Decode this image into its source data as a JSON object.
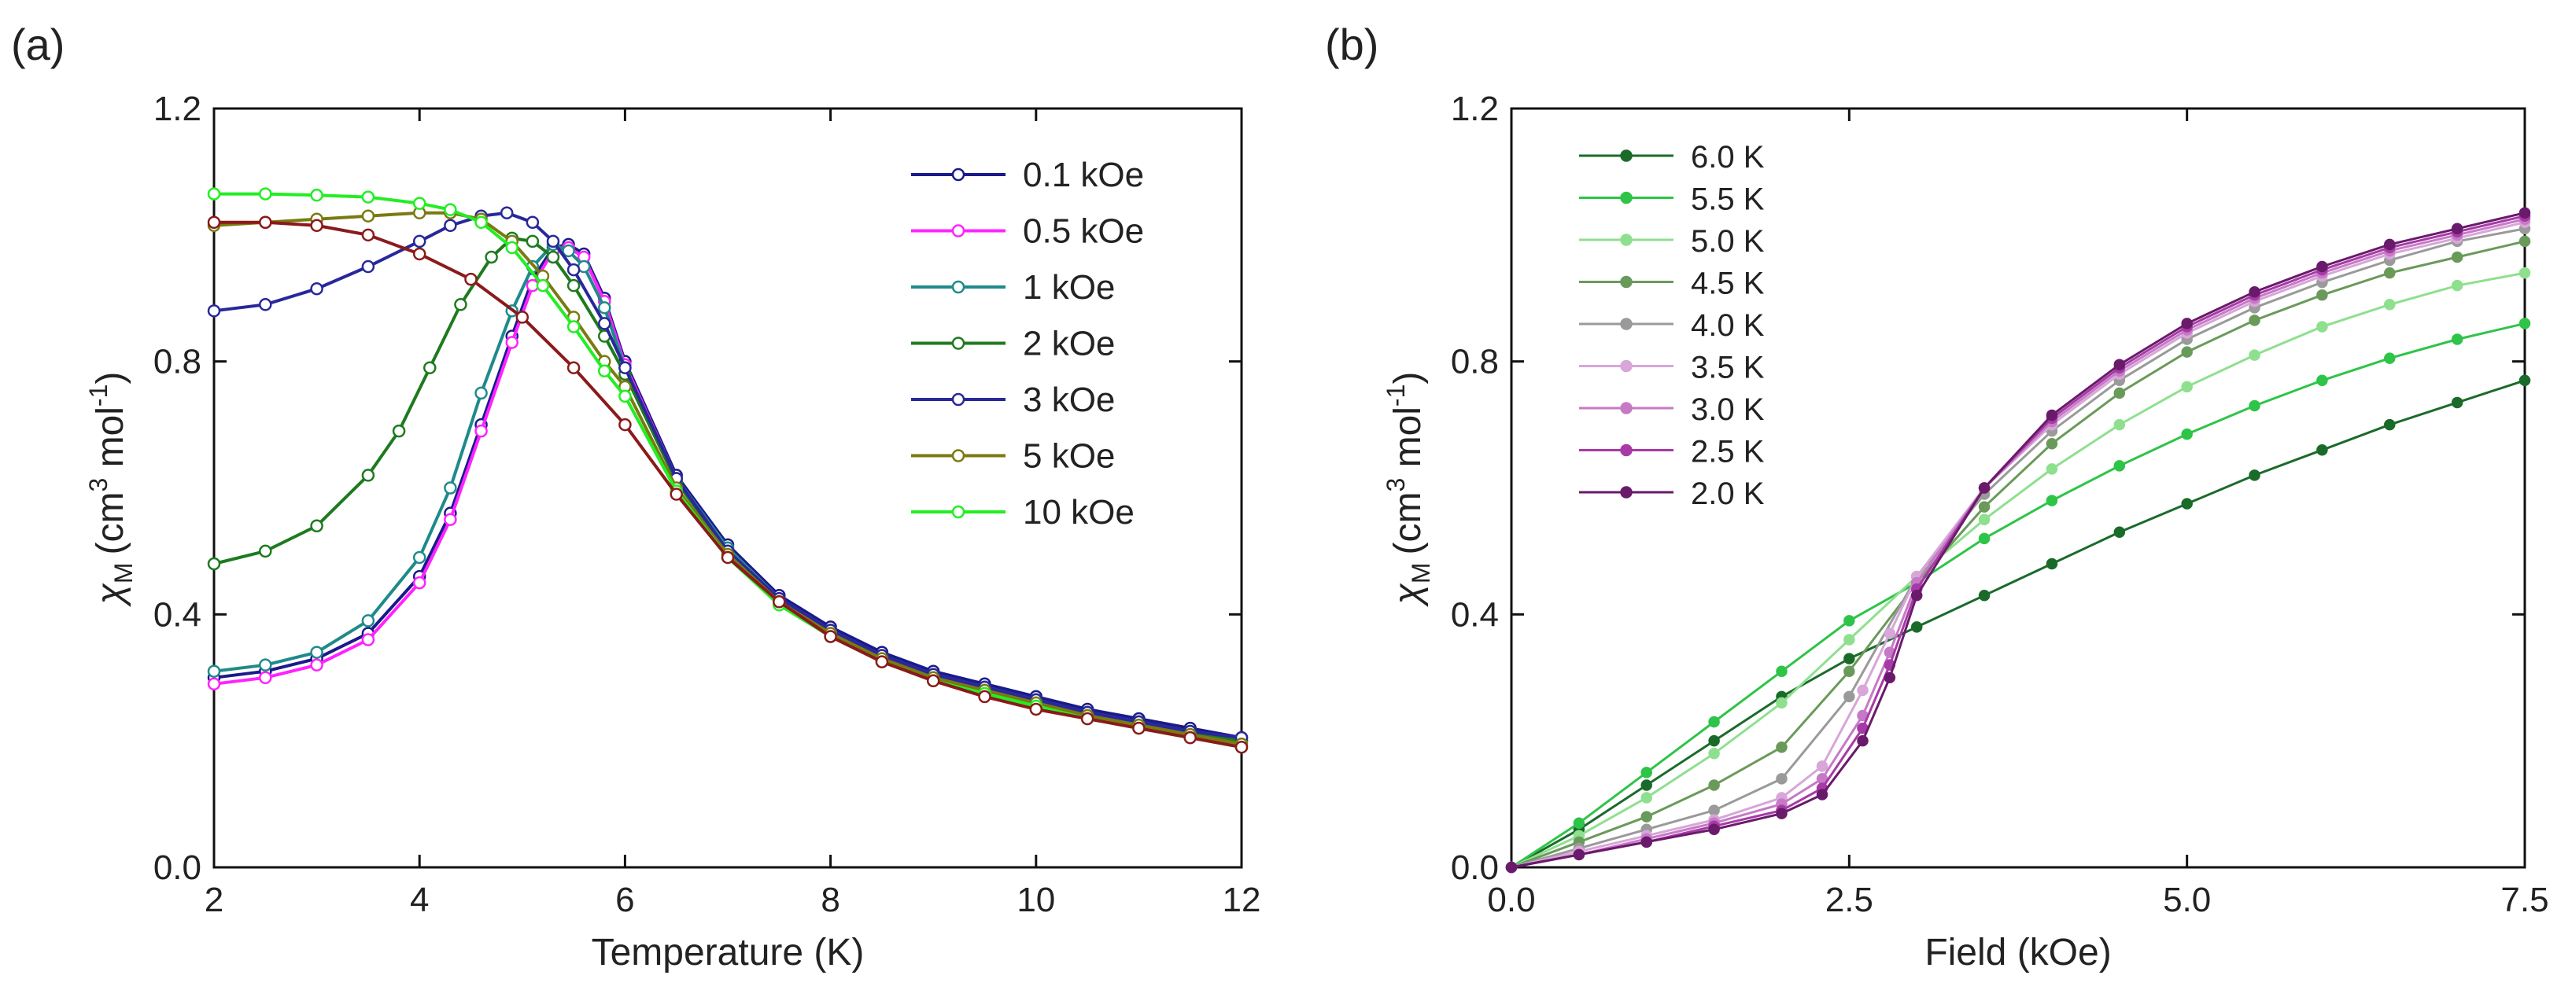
{
  "panels": {
    "a_label": "(a)",
    "b_label": "(b)"
  },
  "chart_data": [
    {
      "panel": "a",
      "type": "line",
      "title": "",
      "xlabel": "Temperature (K)",
      "ylabel_symbol": "χ",
      "ylabel_sub": "M",
      "ylabel_unit": "(cm",
      "ylabel_sup1": "3",
      "ylabel_mid": " mol",
      "ylabel_sup2": "-1",
      "ylabel_end": ")",
      "xlim": [
        2,
        12
      ],
      "ylim": [
        0,
        1.2
      ],
      "xticks": [
        2,
        4,
        6,
        8,
        10,
        12
      ],
      "xtick_labels": [
        "2",
        "4",
        "6",
        "8",
        "10",
        "12"
      ],
      "yticks": [
        0,
        0.4,
        0.8,
        1.2
      ],
      "ytick_labels": [
        "0.0",
        "0.4",
        "0.8",
        "1.2"
      ],
      "marker": "open-circle",
      "grid": false,
      "legend_position": "top-right",
      "series": [
        {
          "name": "0.1 kOe",
          "color": "#1a1a8c",
          "x": [
            2.0,
            2.5,
            3.0,
            3.5,
            4.0,
            4.3,
            4.6,
            4.9,
            5.1,
            5.3,
            5.45,
            5.6,
            5.8,
            6.0,
            6.5,
            7.0,
            7.5,
            8.0,
            8.5,
            9.0,
            9.5,
            10.0,
            10.5,
            11.0,
            11.5,
            12.0
          ],
          "y": [
            0.3,
            0.31,
            0.33,
            0.37,
            0.46,
            0.56,
            0.7,
            0.84,
            0.93,
            0.98,
            0.985,
            0.97,
            0.9,
            0.8,
            0.62,
            0.51,
            0.43,
            0.38,
            0.34,
            0.31,
            0.29,
            0.27,
            0.25,
            0.235,
            0.22,
            0.205
          ]
        },
        {
          "name": "0.5 kOe",
          "color": "#ff22ff",
          "x": [
            2.0,
            2.5,
            3.0,
            3.5,
            4.0,
            4.3,
            4.6,
            4.9,
            5.1,
            5.3,
            5.45,
            5.6,
            5.8,
            6.0,
            6.5,
            7.0,
            7.5,
            8.0,
            8.5,
            9.0,
            9.5,
            10.0,
            10.5,
            11.0,
            11.5,
            12.0
          ],
          "y": [
            0.29,
            0.3,
            0.32,
            0.36,
            0.45,
            0.55,
            0.69,
            0.83,
            0.92,
            0.975,
            0.98,
            0.965,
            0.895,
            0.795,
            0.615,
            0.505,
            0.425,
            0.375,
            0.335,
            0.305,
            0.285,
            0.265,
            0.245,
            0.23,
            0.215,
            0.2
          ]
        },
        {
          "name": "1 kOe",
          "color": "#1f8a8a",
          "x": [
            2.0,
            2.5,
            3.0,
            3.5,
            4.0,
            4.3,
            4.6,
            4.9,
            5.1,
            5.3,
            5.45,
            5.6,
            5.8,
            6.0,
            6.5,
            7.0,
            7.5,
            8.0,
            8.5,
            9.0,
            9.5,
            10.0,
            10.5,
            11.0,
            11.5,
            12.0
          ],
          "y": [
            0.31,
            0.32,
            0.34,
            0.39,
            0.49,
            0.6,
            0.75,
            0.88,
            0.95,
            0.985,
            0.975,
            0.95,
            0.885,
            0.79,
            0.615,
            0.505,
            0.425,
            0.375,
            0.335,
            0.305,
            0.285,
            0.265,
            0.245,
            0.23,
            0.215,
            0.2
          ]
        },
        {
          "name": "2 kOe",
          "color": "#1e7a1e",
          "x": [
            2.0,
            2.5,
            3.0,
            3.5,
            3.8,
            4.1,
            4.4,
            4.7,
            4.9,
            5.1,
            5.3,
            5.5,
            5.8,
            6.0,
            6.5,
            7.0,
            7.5,
            8.0,
            8.5,
            9.0,
            9.5,
            10.0,
            10.5,
            11.0,
            11.5,
            12.0
          ],
          "y": [
            0.48,
            0.5,
            0.54,
            0.62,
            0.69,
            0.79,
            0.89,
            0.965,
            0.995,
            0.99,
            0.965,
            0.92,
            0.84,
            0.78,
            0.61,
            0.5,
            0.42,
            0.37,
            0.33,
            0.3,
            0.28,
            0.26,
            0.245,
            0.23,
            0.215,
            0.2
          ]
        },
        {
          "name": "3 kOe",
          "color": "#28289a",
          "x": [
            2.0,
            2.5,
            3.0,
            3.5,
            4.0,
            4.3,
            4.6,
            4.85,
            5.1,
            5.3,
            5.5,
            5.8,
            6.0,
            6.5,
            7.0,
            7.5,
            8.0,
            8.5,
            9.0,
            9.5,
            10.0,
            10.5,
            11.0,
            11.5,
            12.0
          ],
          "y": [
            0.88,
            0.89,
            0.915,
            0.95,
            0.99,
            1.015,
            1.03,
            1.035,
            1.02,
            0.99,
            0.945,
            0.86,
            0.79,
            0.615,
            0.5,
            0.425,
            0.375,
            0.335,
            0.305,
            0.285,
            0.265,
            0.245,
            0.23,
            0.215,
            0.205
          ]
        },
        {
          "name": "5 kOe",
          "color": "#7a7a10",
          "x": [
            2.0,
            2.5,
            3.0,
            3.5,
            4.0,
            4.3,
            4.6,
            4.9,
            5.2,
            5.5,
            5.8,
            6.0,
            6.5,
            7.0,
            7.5,
            8.0,
            8.5,
            9.0,
            9.5,
            10.0,
            10.5,
            11.0,
            11.5,
            12.0
          ],
          "y": [
            1.015,
            1.02,
            1.025,
            1.03,
            1.035,
            1.035,
            1.025,
            0.99,
            0.935,
            0.87,
            0.8,
            0.76,
            0.6,
            0.495,
            0.42,
            0.37,
            0.33,
            0.3,
            0.28,
            0.26,
            0.24,
            0.225,
            0.21,
            0.195
          ]
        },
        {
          "name": "10 kOe",
          "color": "#22ee22",
          "x": [
            2.0,
            2.5,
            3.0,
            3.5,
            4.0,
            4.3,
            4.6,
            4.9,
            5.2,
            5.5,
            5.8,
            6.0,
            6.5,
            7.0,
            7.5,
            8.0,
            8.5,
            9.0,
            9.5,
            10.0,
            10.5,
            11.0,
            11.5,
            12.0
          ],
          "y": [
            1.065,
            1.065,
            1.063,
            1.06,
            1.05,
            1.04,
            1.02,
            0.98,
            0.92,
            0.855,
            0.785,
            0.745,
            0.595,
            0.49,
            0.415,
            0.365,
            0.325,
            0.295,
            0.275,
            0.255,
            0.235,
            0.22,
            0.205,
            0.19
          ]
        },
        {
          "name": "",
          "color": "#8b1a1a",
          "x": [
            2.0,
            2.5,
            3.0,
            3.5,
            4.0,
            4.5,
            5.0,
            5.5,
            6.0,
            6.5,
            7.0,
            7.5,
            8.0,
            8.5,
            9.0,
            9.5,
            10.0,
            10.5,
            11.0,
            11.5,
            12.0
          ],
          "y": [
            1.02,
            1.02,
            1.015,
            1.0,
            0.97,
            0.93,
            0.87,
            0.79,
            0.7,
            0.59,
            0.49,
            0.42,
            0.365,
            0.325,
            0.295,
            0.27,
            0.25,
            0.235,
            0.22,
            0.205,
            0.19
          ]
        }
      ]
    },
    {
      "panel": "b",
      "type": "line",
      "title": "",
      "xlabel": "Field (kOe)",
      "ylabel_symbol": "χ",
      "ylabel_sub": "M",
      "ylabel_unit": "(cm",
      "ylabel_sup1": "3",
      "ylabel_mid": " mol",
      "ylabel_sup2": "-1",
      "ylabel_end": ")",
      "xlim": [
        0,
        7.5
      ],
      "ylim": [
        0,
        1.2
      ],
      "xticks": [
        0,
        2.5,
        5.0,
        7.5
      ],
      "xtick_labels": [
        "0.0",
        "2.5",
        "5.0",
        "7.5"
      ],
      "yticks": [
        0,
        0.4,
        0.8,
        1.2
      ],
      "ytick_labels": [
        "0.0",
        "0.4",
        "0.8",
        "1.2"
      ],
      "marker": "filled-circle",
      "grid": false,
      "legend_position": "top-left",
      "series": [
        {
          "name": "6.0 K",
          "color": "#1a6b2a",
          "x": [
            0,
            0.5,
            1.0,
            1.5,
            2.0,
            2.5,
            3.0,
            3.5,
            4.0,
            4.5,
            5.0,
            5.5,
            6.0,
            6.5,
            7.0,
            7.5
          ],
          "y": [
            0,
            0.06,
            0.13,
            0.2,
            0.27,
            0.33,
            0.38,
            0.43,
            0.48,
            0.53,
            0.575,
            0.62,
            0.66,
            0.7,
            0.735,
            0.77
          ]
        },
        {
          "name": "5.5 K",
          "color": "#2ec448",
          "x": [
            0,
            0.5,
            1.0,
            1.5,
            2.0,
            2.5,
            3.0,
            3.5,
            4.0,
            4.5,
            5.0,
            5.5,
            6.0,
            6.5,
            7.0,
            7.5
          ],
          "y": [
            0,
            0.07,
            0.15,
            0.23,
            0.31,
            0.39,
            0.45,
            0.52,
            0.58,
            0.635,
            0.685,
            0.73,
            0.77,
            0.805,
            0.835,
            0.86
          ]
        },
        {
          "name": "5.0 K",
          "color": "#8ee08e",
          "x": [
            0,
            0.5,
            1.0,
            1.5,
            2.0,
            2.5,
            3.0,
            3.5,
            4.0,
            4.5,
            5.0,
            5.5,
            6.0,
            6.5,
            7.0,
            7.5
          ],
          "y": [
            0,
            0.05,
            0.11,
            0.18,
            0.26,
            0.36,
            0.46,
            0.55,
            0.63,
            0.7,
            0.76,
            0.81,
            0.855,
            0.89,
            0.92,
            0.94
          ]
        },
        {
          "name": "4.5 K",
          "color": "#6a9a5a",
          "x": [
            0,
            0.5,
            1.0,
            1.5,
            2.0,
            2.5,
            3.0,
            3.5,
            4.0,
            4.5,
            5.0,
            5.5,
            6.0,
            6.5,
            7.0,
            7.5
          ],
          "y": [
            0,
            0.04,
            0.08,
            0.13,
            0.19,
            0.31,
            0.45,
            0.57,
            0.67,
            0.75,
            0.815,
            0.865,
            0.905,
            0.94,
            0.965,
            0.99
          ]
        },
        {
          "name": "4.0 K",
          "color": "#9a9a9a",
          "x": [
            0,
            0.5,
            1.0,
            1.5,
            2.0,
            2.5,
            3.0,
            3.5,
            4.0,
            4.5,
            5.0,
            5.5,
            6.0,
            6.5,
            7.0,
            7.5
          ],
          "y": [
            0,
            0.03,
            0.06,
            0.09,
            0.14,
            0.27,
            0.46,
            0.59,
            0.69,
            0.77,
            0.835,
            0.885,
            0.925,
            0.96,
            0.99,
            1.01
          ]
        },
        {
          "name": "3.5 K",
          "color": "#d8a6d8",
          "x": [
            0,
            0.5,
            1.0,
            1.5,
            2.0,
            2.3,
            2.6,
            2.8,
            3.0,
            3.5,
            4.0,
            4.5,
            5.0,
            5.5,
            6.0,
            6.5,
            7.0,
            7.5
          ],
          "y": [
            0,
            0.025,
            0.05,
            0.075,
            0.11,
            0.16,
            0.28,
            0.37,
            0.46,
            0.6,
            0.7,
            0.78,
            0.845,
            0.895,
            0.935,
            0.97,
            0.995,
            1.02
          ]
        },
        {
          "name": "3.0 K",
          "color": "#c67ac6",
          "x": [
            0,
            0.5,
            1.0,
            1.5,
            2.0,
            2.3,
            2.6,
            2.8,
            3.0,
            3.5,
            4.0,
            4.5,
            5.0,
            5.5,
            6.0,
            6.5,
            7.0,
            7.5
          ],
          "y": [
            0,
            0.02,
            0.045,
            0.07,
            0.1,
            0.14,
            0.24,
            0.34,
            0.45,
            0.6,
            0.705,
            0.785,
            0.85,
            0.9,
            0.94,
            0.975,
            1.0,
            1.025
          ]
        },
        {
          "name": "2.5 K",
          "color": "#a73aa7",
          "x": [
            0,
            0.5,
            1.0,
            1.5,
            2.0,
            2.3,
            2.6,
            2.8,
            3.0,
            3.5,
            4.0,
            4.5,
            5.0,
            5.5,
            6.0,
            6.5,
            7.0,
            7.5
          ],
          "y": [
            0,
            0.02,
            0.04,
            0.065,
            0.09,
            0.125,
            0.22,
            0.32,
            0.44,
            0.6,
            0.71,
            0.79,
            0.855,
            0.905,
            0.945,
            0.98,
            1.005,
            1.03
          ]
        },
        {
          "name": "2.0 K",
          "color": "#6a1a6a",
          "x": [
            0,
            0.5,
            1.0,
            1.5,
            2.0,
            2.3,
            2.6,
            2.8,
            3.0,
            3.5,
            4.0,
            4.5,
            5.0,
            5.5,
            6.0,
            6.5,
            7.0,
            7.5
          ],
          "y": [
            0,
            0.02,
            0.04,
            0.06,
            0.085,
            0.115,
            0.2,
            0.3,
            0.43,
            0.6,
            0.715,
            0.795,
            0.86,
            0.91,
            0.95,
            0.985,
            1.01,
            1.035
          ]
        }
      ]
    }
  ]
}
